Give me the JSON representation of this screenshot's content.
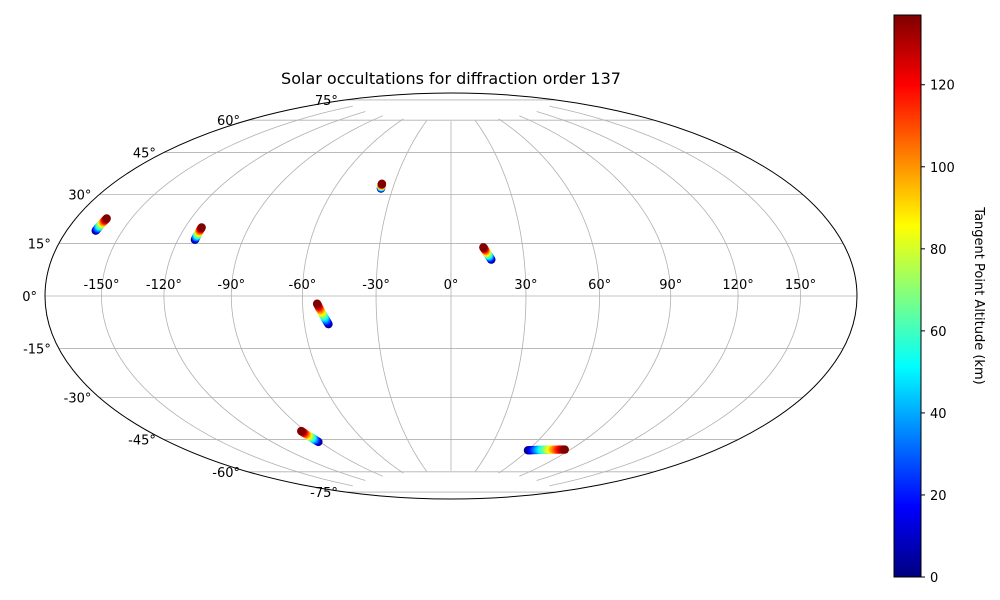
{
  "chart_data": {
    "type": "scatter",
    "projection": "hammer-aitoff",
    "title": "Solar occultations for diffraction order 137",
    "grid": true,
    "longitude_ticks": [
      "-150°",
      "-120°",
      "-90°",
      "-60°",
      "-30°",
      "0°",
      "30°",
      "60°",
      "90°",
      "120°",
      "150°"
    ],
    "latitude_ticks": [
      "-75°",
      "-60°",
      "-45°",
      "-30°",
      "-15°",
      "0°",
      "15°",
      "30°",
      "45°",
      "60°",
      "75°"
    ],
    "colorbar": {
      "label": "Tangent Point Altitude (km)",
      "colormap": "jet",
      "range": [
        0,
        137
      ],
      "ticks": [
        "0",
        "20",
        "40",
        "60",
        "80",
        "100",
        "120"
      ]
    },
    "series": [
      {
        "lon_start": -164.0,
        "lat_start": 20.0,
        "lon_end": -163.0,
        "lat_end": 24.0
      },
      {
        "lon_start": -112.0,
        "lat_start": 20.0,
        "lon_end": -112.0,
        "lat_end": 24.5
      },
      {
        "lon_start": -36.0,
        "lat_start": 43.5,
        "lon_end": -36.5,
        "lat_end": 45.5
      },
      {
        "lon_start": 16.5,
        "lat_start": 14.5,
        "lon_end": 13.5,
        "lat_end": 19.5
      },
      {
        "lon_start": -50.0,
        "lat_start": -11.0,
        "lon_end": -54.0,
        "lat_end": -3.0
      },
      {
        "lon_start": -91.0,
        "lat_start": -57.5,
        "lon_end": -92.5,
        "lat_end": -52.5
      },
      {
        "lon_start": 60.0,
        "lat_start": -63.5,
        "lon_end": 86.0,
        "lat_end": -61.5
      }
    ]
  }
}
